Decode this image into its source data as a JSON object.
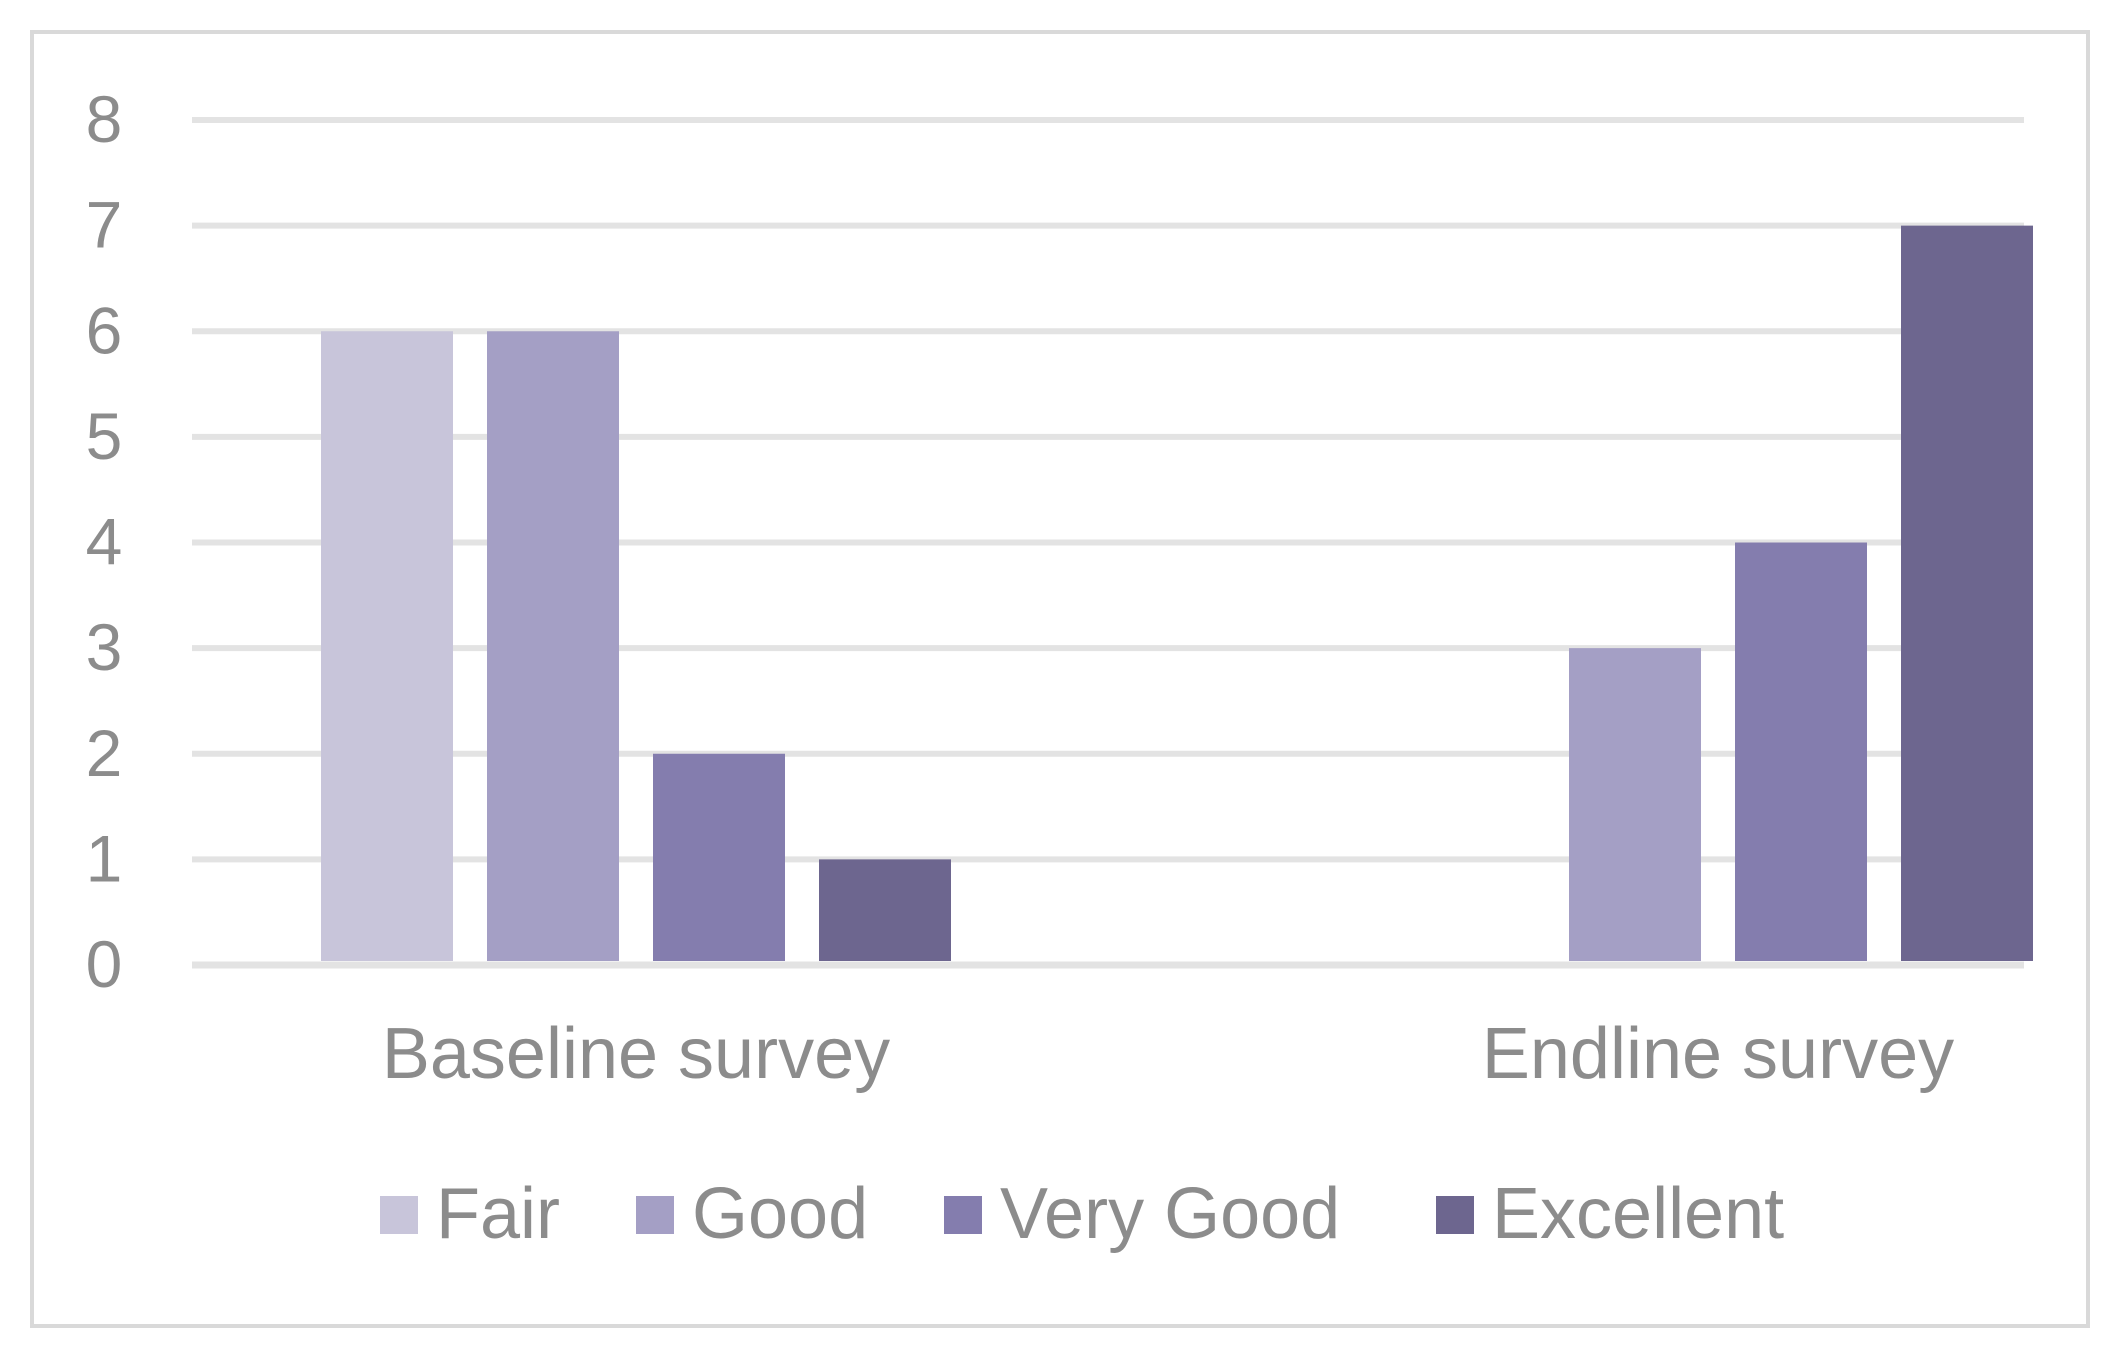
{
  "chart_data": {
    "type": "bar",
    "title": "",
    "xlabel": "",
    "ylabel": "",
    "categories": [
      "Baseline survey",
      "Endline survey"
    ],
    "series": [
      {
        "name": "Fair",
        "values": [
          6,
          0
        ],
        "color": "#c8c5da"
      },
      {
        "name": "Good",
        "values": [
          6,
          3
        ],
        "color": "#a49fc5"
      },
      {
        "name": "Very Good",
        "values": [
          2,
          4
        ],
        "color": "#847dae"
      },
      {
        "name": "Excellent",
        "values": [
          1,
          7
        ],
        "color": "#6d668f"
      }
    ],
    "ylim": [
      0,
      8
    ],
    "yticks": [
      0,
      1,
      2,
      3,
      4,
      5,
      6,
      7,
      8
    ],
    "grid": true,
    "legend_position": "bottom"
  },
  "colors": {
    "grid": "#e3e3e3",
    "text": "#8c8c8c",
    "frame": "#d9d9d9"
  }
}
